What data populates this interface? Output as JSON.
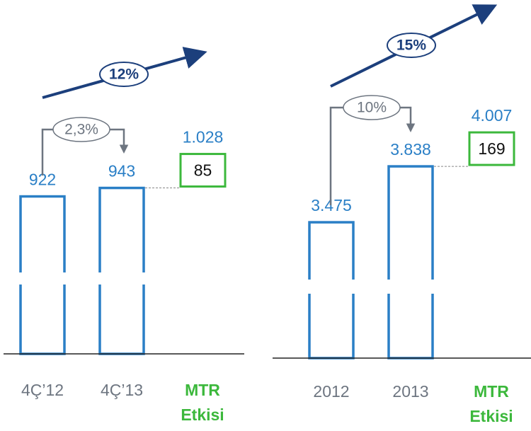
{
  "chart_data": [
    {
      "type": "bar",
      "categories": [
        "4Ç’12",
        "4Ç’13"
      ],
      "values": [
        922,
        943
      ],
      "value_labels": [
        "922",
        "943"
      ],
      "color": "#2a7fc6",
      "ylim": [
        532,
        1100
      ],
      "mtr": {
        "label": [
          "MTR",
          "Etkisi"
        ],
        "value": 85,
        "total": 1028,
        "total_label": "1.028",
        "color": "#3cb83c"
      },
      "change_label": "2,3%",
      "trend_label": "12%"
    },
    {
      "type": "bar",
      "categories": [
        "2012",
        "2013"
      ],
      "values": [
        3475,
        3838
      ],
      "value_labels": [
        "3.475",
        "3.838"
      ],
      "color": "#2a7fc6",
      "ylim": [
        2593,
        4500
      ],
      "mtr": {
        "label": [
          "MTR",
          "Etkisi"
        ],
        "value": 169,
        "total": 4007,
        "total_label": "4.007",
        "color": "#3cb83c"
      },
      "change_label": "10%",
      "trend_label": "15%"
    }
  ]
}
